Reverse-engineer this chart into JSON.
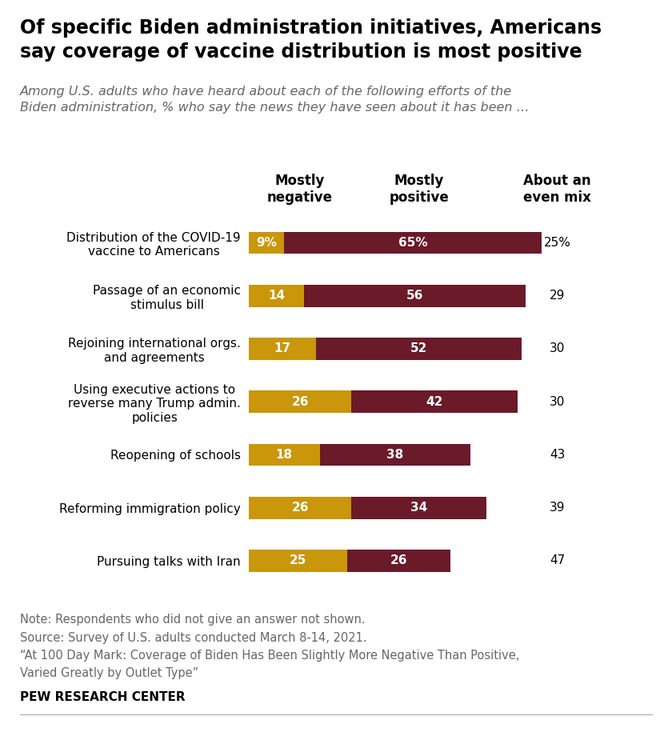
{
  "title": "Of specific Biden administration initiatives, Americans\nsay coverage of vaccine distribution is most positive",
  "subtitle": "Among U.S. adults who have heard about each of the following efforts of the\nBiden administration, % who say the news they have seen about it has been …",
  "categories": [
    "Distribution of the COVID-19\nvaccine to Americans",
    "Passage of an economic\nstimulus bill",
    "Rejoining international orgs.\nand agreements",
    "Using executive actions to\nreverse many Trump admin.\npolicies",
    "Reopening of schools",
    "Reforming immigration policy",
    "Pursuing talks with Iran"
  ],
  "negative_values": [
    9,
    14,
    17,
    26,
    18,
    26,
    25
  ],
  "positive_values": [
    65,
    56,
    52,
    42,
    38,
    34,
    26
  ],
  "even_mix_values": [
    "25%",
    "29",
    "30",
    "30",
    "43",
    "39",
    "47"
  ],
  "negative_labels": [
    "9%",
    "14",
    "17",
    "26",
    "18",
    "26",
    "25"
  ],
  "positive_labels": [
    "65%",
    "56",
    "52",
    "42",
    "38",
    "34",
    "26"
  ],
  "negative_color": "#C9960C",
  "positive_color": "#6B1A2A",
  "col_header_neg": "Mostly\nnegative",
  "col_header_pos": "Mostly\npositive",
  "col_header_even": "About an\neven mix",
  "note_lines": [
    "Note: Respondents who did not give an answer not shown.",
    "Source: Survey of U.S. adults conducted March 8-14, 2021.",
    "“At 100 Day Mark: Coverage of Biden Has Been Slightly More Negative Than Positive,",
    "Varied Greatly by Outlet Type”"
  ],
  "source_label": "PEW RESEARCH CENTER",
  "background_color": "#FFFFFF",
  "title_fontsize": 17,
  "subtitle_fontsize": 11.5,
  "header_fontsize": 12,
  "label_fontsize": 11,
  "tick_fontsize": 11,
  "note_fontsize": 10.5,
  "bar_height": 0.42
}
